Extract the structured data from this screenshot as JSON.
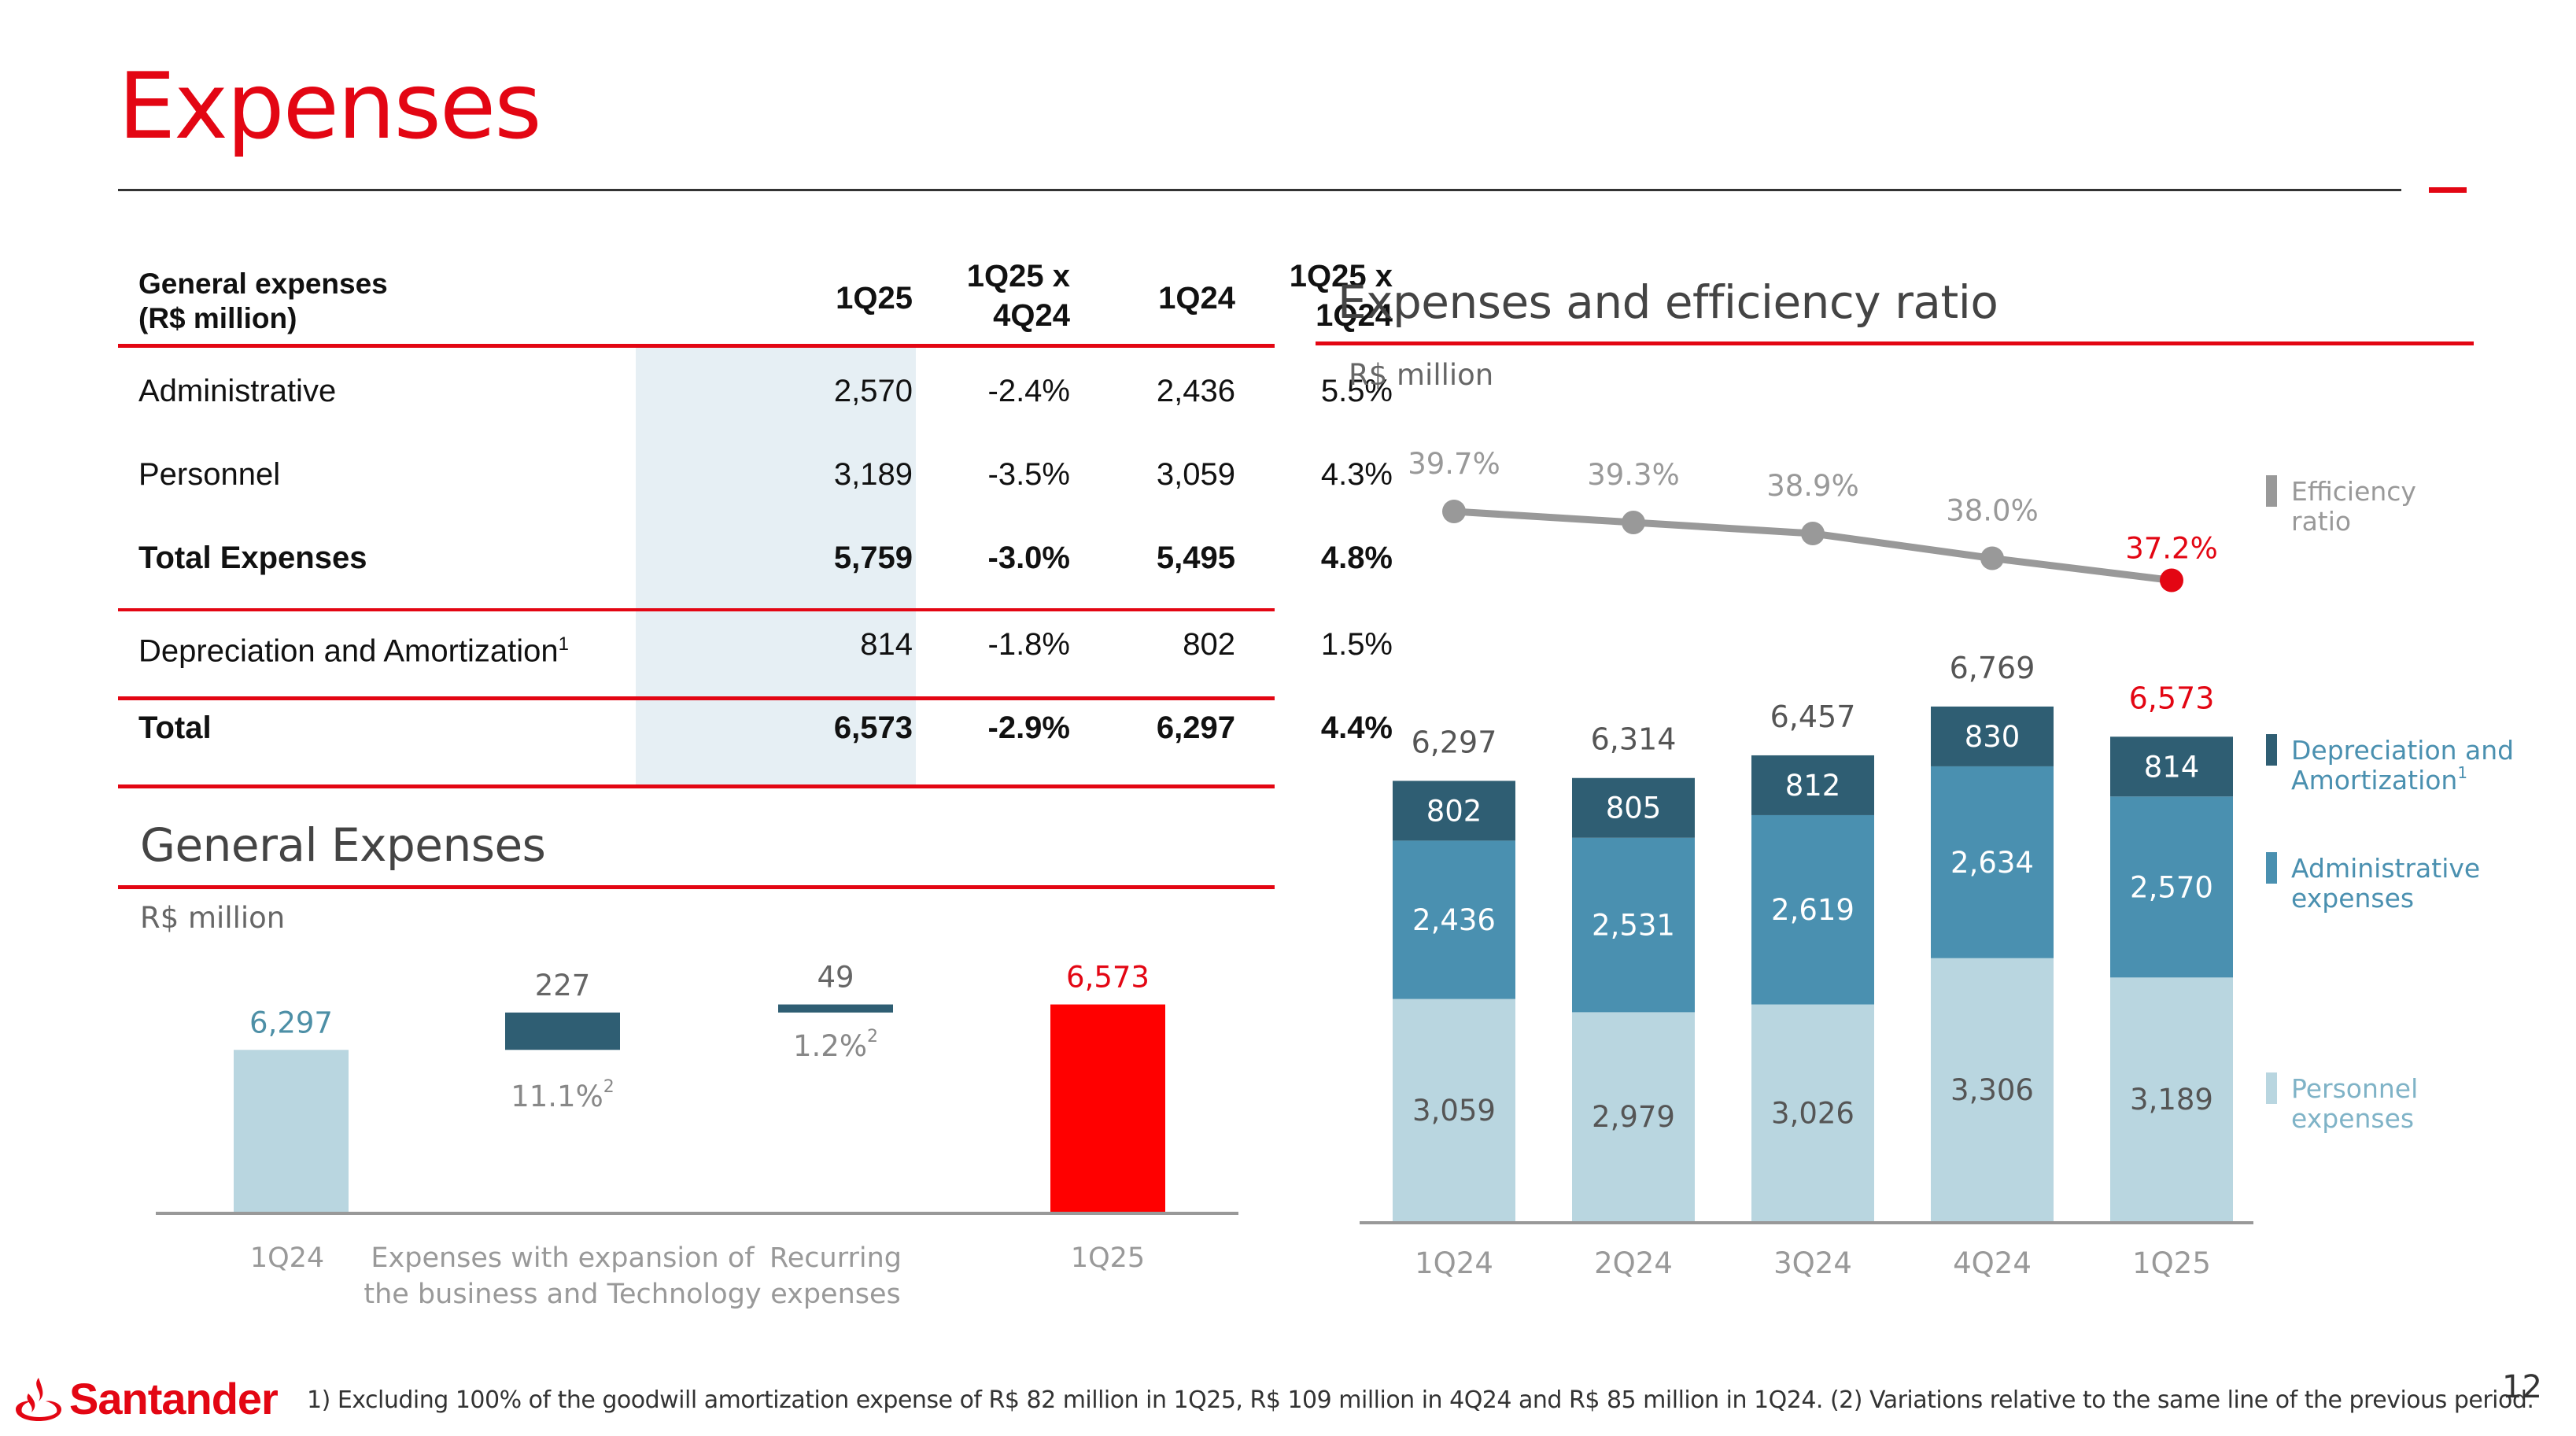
{
  "title": "Expenses",
  "table": {
    "header": {
      "label_line1": "General expenses",
      "label_line2": "(R$ million)",
      "col1": "1Q25",
      "col2_line1": "1Q25 x",
      "col2_line2": "4Q24",
      "col3": "1Q24",
      "col4_line1": "1Q25 x",
      "col4_line2": "1Q24"
    },
    "rows": [
      {
        "label": "Administrative",
        "sup": "",
        "c1": "2,570",
        "c2": "-2.4%",
        "c3": "2,436",
        "c4": "5.5%",
        "bold": false
      },
      {
        "label": "Personnel",
        "sup": "",
        "c1": "3,189",
        "c2": "-3.5%",
        "c3": "3,059",
        "c4": "4.3%",
        "bold": false
      },
      {
        "label": "Total Expenses",
        "sup": "",
        "c1": "5,759",
        "c2": "-3.0%",
        "c3": "5,495",
        "c4": "4.8%",
        "bold": true
      },
      {
        "label": "Depreciation and Amortization",
        "sup": "1",
        "c1": "814",
        "c2": "-1.8%",
        "c3": "802",
        "c4": "1.5%",
        "bold": false
      },
      {
        "label": "Total",
        "sup": "",
        "c1": "6,573",
        "c2": "-2.9%",
        "c3": "6,297",
        "c4": "4.4%",
        "bold": true
      }
    ]
  },
  "general_expenses": {
    "title": "General Expenses",
    "subtitle": "R$ million"
  },
  "efficiency": {
    "title": "Expenses and efficiency ratio",
    "subtitle": "R$ million"
  },
  "chart_data": [
    {
      "type": "bar",
      "subtype": "waterfall",
      "title": "General Expenses",
      "unit": "R$ million",
      "categories": [
        "1Q24",
        "Expenses with expansion of the business and Technology",
        "Recurring expenses",
        "1Q25"
      ],
      "category_lines": [
        [
          "1Q24"
        ],
        [
          "Expenses with expansion of",
          "the business and Technology"
        ],
        [
          "Recurring",
          "expenses"
        ],
        [
          "1Q25"
        ]
      ],
      "values": [
        6297,
        227,
        49,
        6573
      ],
      "value_labels": [
        "6,297",
        "227",
        "49",
        "6,573"
      ],
      "step_types": [
        "total",
        "increase",
        "increase",
        "total"
      ],
      "annotations": [
        {
          "category": "Expenses with expansion of the business and Technology",
          "text": "11.1%",
          "sup": "2"
        },
        {
          "category": "Recurring expenses",
          "text": "1.2%",
          "sup": "2"
        }
      ],
      "colors": {
        "start": "#b9d6e0",
        "step": "#2f5e73",
        "end": "#ff0000",
        "start_label": "#4d8fa6",
        "end_label": "#e30613",
        "axis": "#999999"
      }
    },
    {
      "type": "bar",
      "subtype": "stacked",
      "title": "Expenses and efficiency ratio",
      "unit": "R$ million",
      "categories": [
        "1Q24",
        "2Q24",
        "3Q24",
        "4Q24",
        "1Q25"
      ],
      "series": [
        {
          "name": "Personnel expenses",
          "values": [
            3059,
            2979,
            3026,
            3306,
            3189
          ],
          "labels": [
            "3,059",
            "2,979",
            "3,026",
            "3,306",
            "3,189"
          ],
          "color": "#b9d6e0"
        },
        {
          "name": "Administrative expenses",
          "values": [
            2436,
            2531,
            2619,
            2634,
            2570
          ],
          "labels": [
            "2,436",
            "2,531",
            "2,619",
            "2,634",
            "2,570"
          ],
          "color": "#4a90b0"
        },
        {
          "name": "Depreciation and Amortization",
          "sup": "1",
          "values": [
            802,
            805,
            812,
            830,
            814
          ],
          "labels": [
            "802",
            "805",
            "812",
            "830",
            "814"
          ],
          "color": "#2f5e73"
        }
      ],
      "totals": [
        6297,
        6314,
        6457,
        6769,
        6573
      ],
      "total_labels": [
        "6,297",
        "6,314",
        "6,457",
        "6,769",
        "6,573"
      ],
      "line": {
        "name": "Efficiency ratio",
        "values": [
          39.7,
          39.3,
          38.9,
          38.0,
          37.2
        ],
        "labels": [
          "39.7%",
          "39.3%",
          "38.9%",
          "38.0%",
          "37.2%"
        ],
        "color": "#999999",
        "highlight_color": "#e30613"
      },
      "legend": {
        "placement": "right",
        "items": [
          {
            "lines": [
              "Efficiency",
              "ratio"
            ],
            "color": "#999999",
            "text_color": "#999999",
            "sup": ""
          },
          {
            "lines": [
              "Depreciation and",
              "Amortization"
            ],
            "color": "#2f5e73",
            "text_color": "#4a90b0",
            "sup": "1"
          },
          {
            "lines": [
              "Administrative",
              "expenses"
            ],
            "color": "#4a90b0",
            "text_color": "#4a90b0",
            "sup": ""
          },
          {
            "lines": [
              "Personnel",
              "expenses"
            ],
            "color": "#b9d6e0",
            "text_color": "#7fb3c7",
            "sup": ""
          }
        ]
      }
    }
  ],
  "footnote": "1) Excluding 100% of the goodwill amortization expense of R$ 82 million in 1Q25, R$ 109 million in 4Q24 and R$ 85 million in 1Q24. (2) Variations relative to the same line of the previous period.",
  "page_number": "12",
  "logo": {
    "text": "Santander",
    "icon": "flame-icon"
  }
}
